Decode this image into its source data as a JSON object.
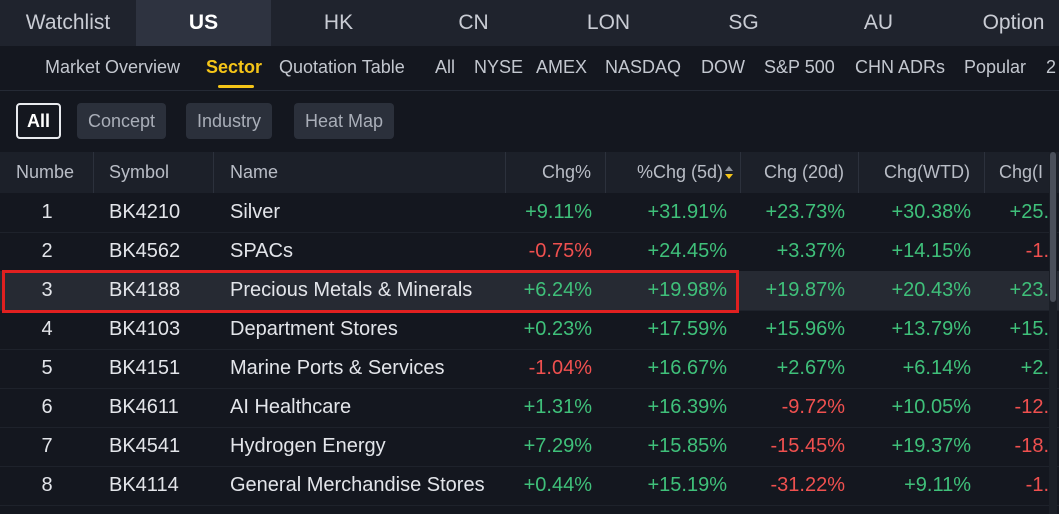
{
  "top_tabs": [
    "Watchlist",
    "US",
    "HK",
    "CN",
    "LON",
    "SG",
    "AU",
    "Option"
  ],
  "active_top_tab": "US",
  "sub_nav": [
    "Market Overview",
    "Sector",
    "Quotation Table",
    "All",
    "NYSE",
    "AMEX",
    "NASDAQ",
    "DOW",
    "S&P 500",
    "CHN ADRs",
    "Popular",
    "2"
  ],
  "active_sub_nav": "Sector",
  "filters": [
    "All",
    "Concept",
    "Industry",
    "Heat Map"
  ],
  "active_filter": "All",
  "columns": [
    "Numbe",
    "Symbol",
    "Name",
    "Chg%",
    "%Chg (5d)",
    "Chg (20d)",
    "Chg(WTD)",
    "Chg(I"
  ],
  "rows": [
    {
      "no": "1",
      "symbol": "BK4210",
      "name": "Silver",
      "chg": "+9.11%",
      "chg5d": "+31.91%",
      "chg20d": "+23.73%",
      "chgwtd": "+30.38%",
      "chgx": "+25."
    },
    {
      "no": "2",
      "symbol": "BK4562",
      "name": "SPACs",
      "chg": "-0.75%",
      "chg5d": "+24.45%",
      "chg20d": "+3.37%",
      "chgwtd": "+14.15%",
      "chgx": "-1."
    },
    {
      "no": "3",
      "symbol": "BK4188",
      "name": "Precious Metals & Minerals",
      "chg": "+6.24%",
      "chg5d": "+19.98%",
      "chg20d": "+19.87%",
      "chgwtd": "+20.43%",
      "chgx": "+23."
    },
    {
      "no": "4",
      "symbol": "BK4103",
      "name": "Department Stores",
      "chg": "+0.23%",
      "chg5d": "+17.59%",
      "chg20d": "+15.96%",
      "chgwtd": "+13.79%",
      "chgx": "+15."
    },
    {
      "no": "5",
      "symbol": "BK4151",
      "name": "Marine Ports & Services",
      "chg": "-1.04%",
      "chg5d": "+16.67%",
      "chg20d": "+2.67%",
      "chgwtd": "+6.14%",
      "chgx": "+2."
    },
    {
      "no": "6",
      "symbol": "BK4611",
      "name": "AI Healthcare",
      "chg": "+1.31%",
      "chg5d": "+16.39%",
      "chg20d": "-9.72%",
      "chgwtd": "+10.05%",
      "chgx": "-12."
    },
    {
      "no": "7",
      "symbol": "BK4541",
      "name": "Hydrogen Energy",
      "chg": "+7.29%",
      "chg5d": "+15.85%",
      "chg20d": "-15.45%",
      "chgwtd": "+19.37%",
      "chgx": "-18."
    },
    {
      "no": "8",
      "symbol": "BK4114",
      "name": "General Merchandise Stores",
      "chg": "+0.44%",
      "chg5d": "+15.19%",
      "chg20d": "-31.22%",
      "chgwtd": "+9.11%",
      "chgx": "-1."
    }
  ],
  "highlighted_row": "3",
  "colors": {
    "positive": "#3fc07a",
    "negative": "#f0504f",
    "accent": "#f5c518",
    "highlight_box": "#e02020"
  }
}
